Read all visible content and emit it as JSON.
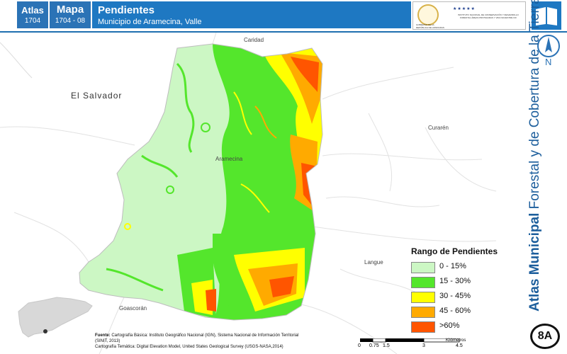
{
  "header": {
    "atlas_label": "Atlas",
    "atlas_number": "1704",
    "map_label": "Mapa",
    "map_number": "1704 - 08",
    "title": "Pendientes",
    "subtitle": "Municipio de Aramecina, Valle"
  },
  "logos": {
    "gov_text": "GOBIERNO DE LA REPÚBLICA DE HONDURAS",
    "icf_text": "INSTITUTO NACIONAL DE CONSERVACIÓN Y DESARROLLO FORESTAL ÁREAS PROTEGIDAS Y VIDA SILVESTRE ICF"
  },
  "side_title": {
    "bold": "Atlas Municipal",
    "rest": " Forestal y de Cobertura de la Tierra"
  },
  "north_label": "N",
  "map_labels": {
    "caridad": "Caridad",
    "el_salvador": "El Salvador",
    "curaren": "Curarén",
    "aramecina": "Aramecina",
    "langue": "Langue",
    "goascoran": "Goascorán"
  },
  "legend": {
    "title": "Rango de Pendientes",
    "items": [
      {
        "label": "0 - 15%",
        "color": "#ccf7c4"
      },
      {
        "label": "15 - 30%",
        "color": "#54e62c"
      },
      {
        "label": "30 - 45%",
        "color": "#ffff00"
      },
      {
        "label": "45 - 60%",
        "color": "#ffaa00"
      },
      {
        "label": ">60%",
        "color": "#ff5500"
      }
    ]
  },
  "source": {
    "label": "Fuente:",
    "line1": "Cartografía Básica: Instituto Geográfico Nacional (IGN), Sistema Nacional de Información Territorial (SINIT, 2013)",
    "line2": "Cartografía Temática: Digital Elevation Model, United States Geological Survey (USGS-NASA,2014)"
  },
  "scale": {
    "ticks": [
      "0",
      "0.75",
      "1.5",
      "3",
      "4.5"
    ],
    "unit": "Kilómetros"
  },
  "badge": "8A"
}
